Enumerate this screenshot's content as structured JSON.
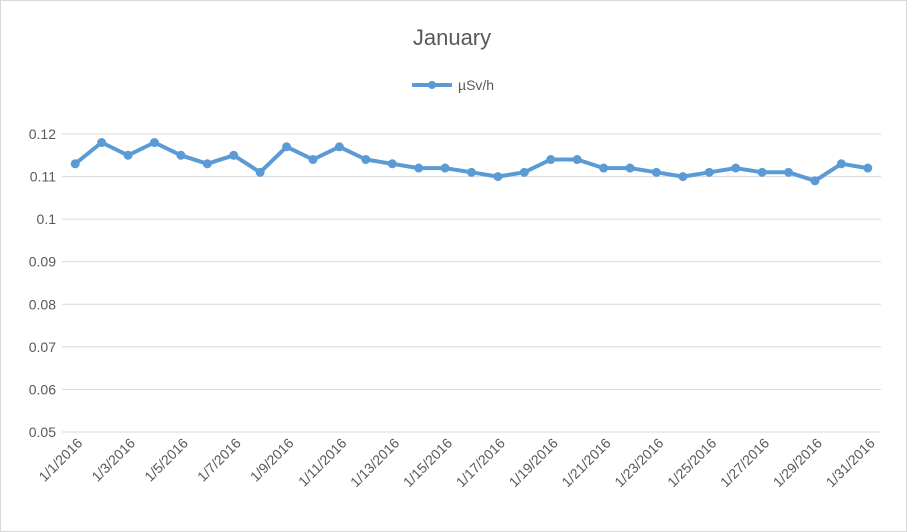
{
  "chart_data": {
    "type": "line",
    "title": "January",
    "legend": {
      "placement": "top",
      "entries": [
        "µSv/h"
      ]
    },
    "xlabel": "",
    "ylabel": "",
    "ylim": [
      0.05,
      0.12
    ],
    "y_ticks": [
      "0.05",
      "0.06",
      "0.07",
      "0.08",
      "0.09",
      "0.1",
      "0.11",
      "0.12"
    ],
    "grid": true,
    "x": [
      "1/1/2016",
      "1/2/2016",
      "1/3/2016",
      "1/4/2016",
      "1/5/2016",
      "1/6/2016",
      "1/7/2016",
      "1/8/2016",
      "1/9/2016",
      "1/10/2016",
      "1/11/2016",
      "1/12/2016",
      "1/13/2016",
      "1/14/2016",
      "1/15/2016",
      "1/16/2016",
      "1/17/2016",
      "1/18/2016",
      "1/19/2016",
      "1/20/2016",
      "1/21/2016",
      "1/22/2016",
      "1/23/2016",
      "1/24/2016",
      "1/25/2016",
      "1/26/2016",
      "1/27/2016",
      "1/28/2016",
      "1/29/2016",
      "1/30/2016",
      "1/31/2016"
    ],
    "x_tick_labels": [
      "1/1/2016",
      "1/3/2016",
      "1/5/2016",
      "1/7/2016",
      "1/9/2016",
      "1/11/2016",
      "1/13/2016",
      "1/15/2016",
      "1/17/2016",
      "1/19/2016",
      "1/21/2016",
      "1/23/2016",
      "1/25/2016",
      "1/27/2016",
      "1/29/2016",
      "1/31/2016"
    ],
    "series": [
      {
        "name": "µSv/h",
        "color": "#5b9bd5",
        "values": [
          0.113,
          0.118,
          0.115,
          0.118,
          0.115,
          0.113,
          0.115,
          0.111,
          0.117,
          0.114,
          0.117,
          0.114,
          0.113,
          0.112,
          0.112,
          0.111,
          0.11,
          0.111,
          0.114,
          0.114,
          0.112,
          0.112,
          0.111,
          0.11,
          0.111,
          0.112,
          0.111,
          0.111,
          0.109,
          0.113,
          0.112
        ]
      }
    ]
  }
}
